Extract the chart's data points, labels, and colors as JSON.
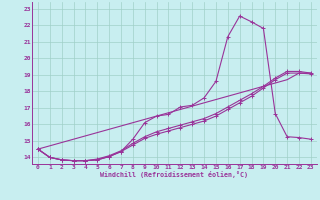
{
  "xlabel": "Windchill (Refroidissement éolien,°C)",
  "background_color": "#c8eef0",
  "grid_color": "#a0d0c8",
  "line_color": "#993399",
  "xlim": [
    -0.5,
    23.5
  ],
  "ylim": [
    13.6,
    23.4
  ],
  "xticks": [
    0,
    1,
    2,
    3,
    4,
    5,
    6,
    7,
    8,
    9,
    10,
    11,
    12,
    13,
    14,
    15,
    16,
    17,
    18,
    19,
    20,
    21,
    22,
    23
  ],
  "yticks": [
    14,
    15,
    16,
    17,
    18,
    19,
    20,
    21,
    22,
    23
  ],
  "curve1_x": [
    0,
    1,
    2,
    3,
    4,
    5,
    6,
    7,
    8,
    9,
    10,
    11,
    12,
    13,
    14,
    15,
    16,
    17,
    18,
    19,
    20,
    21,
    22,
    23
  ],
  "curve1_y": [
    14.5,
    14.0,
    13.85,
    13.8,
    13.8,
    13.85,
    14.05,
    14.35,
    15.1,
    16.1,
    16.5,
    16.6,
    17.05,
    17.15,
    17.6,
    18.6,
    21.3,
    22.55,
    22.2,
    21.8,
    16.65,
    15.25,
    15.2,
    15.1
  ],
  "curve2_x": [
    0,
    1,
    2,
    3,
    4,
    5,
    6,
    7,
    8,
    9,
    10,
    11,
    12,
    13,
    14,
    15,
    16,
    17,
    18,
    19,
    20,
    21,
    22,
    23
  ],
  "curve2_y": [
    14.5,
    14.0,
    13.85,
    13.8,
    13.8,
    13.85,
    14.05,
    14.35,
    14.75,
    15.15,
    15.4,
    15.6,
    15.8,
    16.0,
    16.2,
    16.5,
    16.9,
    17.3,
    17.7,
    18.2,
    18.7,
    19.1,
    19.1,
    19.05
  ],
  "curve3_x": [
    0,
    1,
    2,
    3,
    4,
    5,
    6,
    7,
    8,
    9,
    10,
    11,
    12,
    13,
    14,
    15,
    16,
    17,
    18,
    19,
    20,
    21,
    22,
    23
  ],
  "curve3_y": [
    14.5,
    14.0,
    13.85,
    13.8,
    13.8,
    13.9,
    14.1,
    14.4,
    14.85,
    15.25,
    15.55,
    15.75,
    15.95,
    16.15,
    16.35,
    16.65,
    17.05,
    17.45,
    17.85,
    18.3,
    18.8,
    19.2,
    19.2,
    19.1
  ],
  "curve4_x": [
    0,
    21,
    22,
    23
  ],
  "curve4_y": [
    14.5,
    18.7,
    19.1,
    19.1
  ]
}
